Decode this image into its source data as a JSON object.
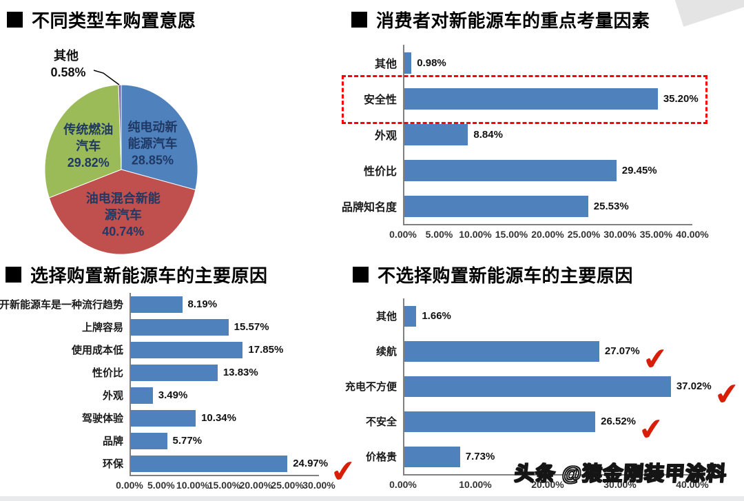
{
  "page": {
    "background": "#ffffff",
    "watermark": "头条 @猿金刚装甲涂料",
    "footer_strip_color": "#e8eaec"
  },
  "colors": {
    "bar_blue": "#4f81bd",
    "axis_gray": "#808080",
    "highlight_box_red": "#fe0000",
    "checkmark_red": "#d81e06",
    "pie_blue": "#4f81bd",
    "pie_red": "#c0504d",
    "pie_green": "#9bbb59",
    "pie_purple": "#8064a2",
    "pie_label_text": "#1f3864"
  },
  "chart_data": [
    {
      "type": "pie",
      "title": "不同类型车购置意愿",
      "legend_position": "none",
      "slices": [
        {
          "label": "纯电动新能源汽车",
          "value": 28.85,
          "value_label": "28.85%",
          "color": "#4f81bd",
          "label_lines": [
            "纯电动新",
            "能源汽车",
            "28.85%"
          ]
        },
        {
          "label": "油电混合新能源汽车",
          "value": 40.74,
          "value_label": "40.74%",
          "color": "#c0504d",
          "label_lines": [
            "油电混合新能",
            "源汽车",
            "40.74%"
          ]
        },
        {
          "label": "传统燃油汽车",
          "value": 29.82,
          "value_label": "29.82%",
          "color": "#9bbb59",
          "label_lines": [
            "传统燃油",
            "汽车",
            "29.82%"
          ]
        },
        {
          "label": "其他",
          "value": 0.58,
          "value_label": "0.58%",
          "color": "#8064a2",
          "external_label_lines": [
            "其他",
            "0.58%"
          ]
        }
      ]
    },
    {
      "type": "bar",
      "title": "消费者对新能源车的重点考量因素",
      "orientation": "horizontal",
      "categories": [
        "其他",
        "安全性",
        "外观",
        "性价比",
        "品牌知名度"
      ],
      "values": [
        0.98,
        35.2,
        8.84,
        29.45,
        25.53
      ],
      "value_labels": [
        "0.98%",
        "35.20%",
        "8.84%",
        "29.45%",
        "25.53%"
      ],
      "xlim": [
        0,
        40
      ],
      "ticks": [
        "0.00%",
        "5.00%",
        "10.00%",
        "15.00%",
        "20.00%",
        "25.00%",
        "30.00%",
        "35.00%",
        "40.00%"
      ],
      "highlight_index": 1,
      "checkmarks": []
    },
    {
      "type": "bar",
      "title": "选择购置新能源车的主要原因",
      "orientation": "horizontal",
      "categories": [
        "开新能源车是一种流行趋势",
        "上牌容易",
        "使用成本低",
        "性价比",
        "外观",
        "驾驶体验",
        "品牌",
        "环保"
      ],
      "values": [
        8.19,
        15.57,
        17.85,
        13.83,
        3.49,
        10.34,
        5.77,
        24.97
      ],
      "value_labels": [
        "8.19%",
        "15.57%",
        "17.85%",
        "13.83%",
        "3.49%",
        "10.34%",
        "5.77%",
        "24.97%"
      ],
      "xlim": [
        0,
        30
      ],
      "ticks": [
        "0.00%",
        "5.00%",
        "10.00%",
        "15.00%",
        "20.00%",
        "25.00%",
        "30.00%"
      ],
      "highlight_index": null,
      "checkmarks": [
        7
      ]
    },
    {
      "type": "bar",
      "title": "不选择购置新能源车的主要原因",
      "orientation": "horizontal",
      "categories": [
        "其他",
        "续航",
        "充电不方便",
        "不安全",
        "价格贵"
      ],
      "values": [
        1.66,
        27.07,
        37.02,
        26.52,
        7.73
      ],
      "value_labels": [
        "1.66%",
        "27.07%",
        "37.02%",
        "26.52%",
        "7.73%"
      ],
      "xlim": [
        0,
        40
      ],
      "ticks": [
        "0.00%",
        "10.00%",
        "20.00%",
        "30.00%",
        "40.00%"
      ],
      "highlight_index": null,
      "checkmarks": [
        1,
        2,
        3
      ]
    }
  ]
}
